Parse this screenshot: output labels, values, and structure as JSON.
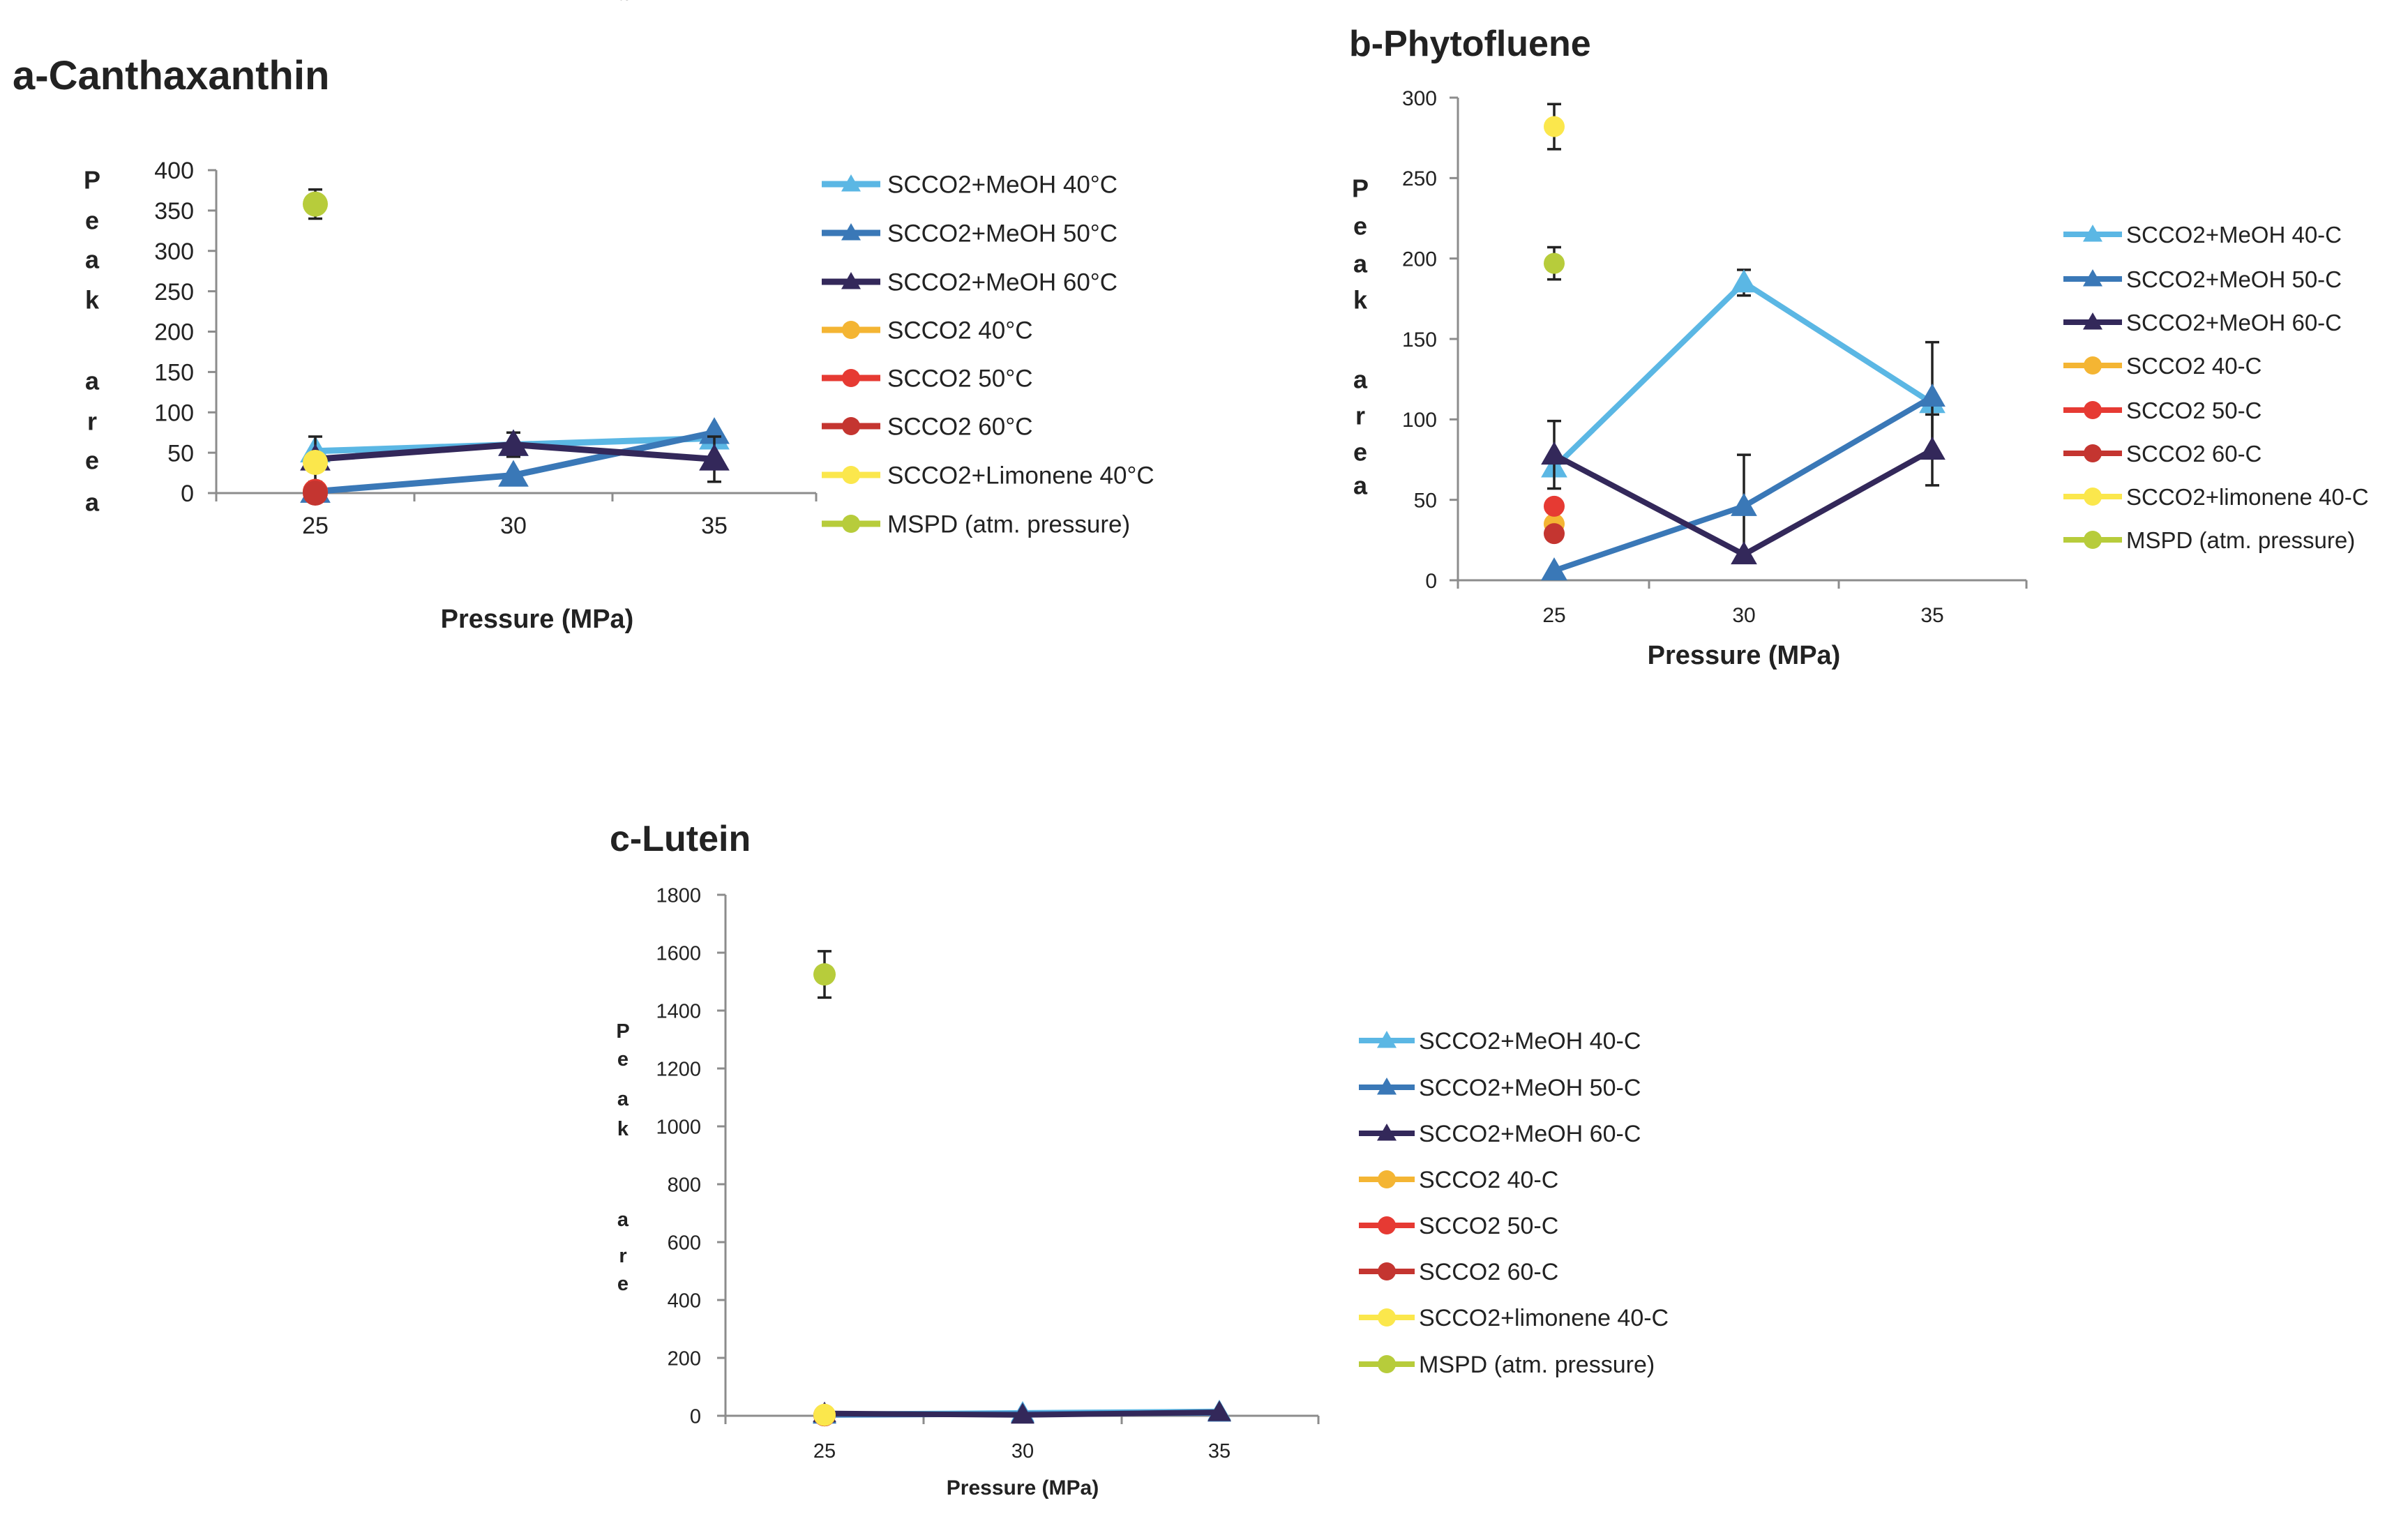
{
  "series_colors": {
    "meoh40": "#5BB7E4",
    "meoh50": "#3A78B7",
    "meoh60": "#33285A",
    "sc40": "#F4B533",
    "sc50": "#E63A33",
    "sc60": "#C43530",
    "limonene": "#FBE74C",
    "mspd": "#B7CC3B"
  },
  "chart_data": [
    {
      "type": "line",
      "title": "a-Canthaxanthin",
      "xlabel": "Pressure (MPa)",
      "ylabel": "Peak area",
      "ylabel_chars": [
        "P",
        "e",
        "a",
        "k",
        "",
        "a",
        "r",
        "e",
        "a"
      ],
      "categories": [
        "25",
        "30",
        "35"
      ],
      "ylim": [
        0,
        400
      ],
      "yticks": [
        "0",
        "50",
        "100",
        "150",
        "200",
        "250",
        "300",
        "350",
        "400"
      ],
      "legend": "right",
      "series": [
        {
          "key": "meoh40",
          "name": "SCCO2+MeOH  40°C",
          "marker": "triangle",
          "values": [
            52,
            60,
            68
          ],
          "errors": [
            0,
            0,
            0
          ]
        },
        {
          "key": "meoh50",
          "name": "SCCO2+MeOH  50°C",
          "marker": "triangle",
          "values": [
            2,
            22,
            75
          ],
          "errors": [
            0,
            0,
            0
          ]
        },
        {
          "key": "meoh60",
          "name": "SCCO2+MeOH  60°C",
          "marker": "triangle",
          "values": [
            42,
            60,
            42
          ],
          "errors": [
            28,
            15,
            28
          ]
        },
        {
          "key": "sc40",
          "name": "SCCO2  40°C",
          "marker": "circle",
          "values": [
            2,
            null,
            null
          ],
          "errors": [
            0,
            0,
            0
          ]
        },
        {
          "key": "sc50",
          "name": "SCCO2  50°C",
          "marker": "circle",
          "values": [
            2,
            null,
            null
          ],
          "errors": [
            0,
            0,
            0
          ]
        },
        {
          "key": "sc60",
          "name": "SCCO2  60°C",
          "marker": "circle",
          "values": [
            0,
            null,
            null
          ],
          "errors": [
            0,
            0,
            0
          ]
        },
        {
          "key": "limonene",
          "name": "SCCO2+Limonene  40°C",
          "marker": "circle",
          "values": [
            38,
            null,
            null
          ],
          "errors": [
            0,
            0,
            0
          ]
        },
        {
          "key": "mspd",
          "name": "MSPD (atm. pressure)",
          "marker": "circle",
          "values": [
            358,
            null,
            null
          ],
          "errors": [
            18,
            0,
            0
          ]
        }
      ]
    },
    {
      "type": "line",
      "title": "b-Phytofluene",
      "xlabel": "Pressure (MPa)",
      "ylabel": "Peak area",
      "ylabel_chars": [
        "P",
        "e",
        "a",
        "k",
        "",
        "a",
        "r",
        "e",
        "a"
      ],
      "categories": [
        "25",
        "30",
        "35"
      ],
      "ylim": [
        0,
        300
      ],
      "yticks": [
        "0",
        "50",
        "100",
        "150",
        "200",
        "250",
        "300"
      ],
      "legend": "right",
      "series": [
        {
          "key": "meoh40",
          "name": "SCCO2+MeOH 40-C",
          "marker": "triangle",
          "values": [
            70,
            185,
            110
          ],
          "errors": [
            0,
            8,
            0
          ]
        },
        {
          "key": "meoh50",
          "name": "SCCO2+MeOH 50-C",
          "marker": "triangle",
          "values": [
            6,
            46,
            114
          ],
          "errors": [
            0,
            32,
            34
          ]
        },
        {
          "key": "meoh60",
          "name": "SCCO2+MeOH 60-C",
          "marker": "triangle",
          "values": [
            78,
            16,
            81
          ],
          "errors": [
            21,
            0,
            22
          ]
        },
        {
          "key": "sc40",
          "name": "SCCO2 40-C",
          "marker": "circle",
          "values": [
            35,
            null,
            null
          ],
          "errors": [
            0,
            0,
            0
          ]
        },
        {
          "key": "sc50",
          "name": "SCCO2 50-C",
          "marker": "circle",
          "values": [
            46,
            null,
            null
          ],
          "errors": [
            0,
            0,
            0
          ]
        },
        {
          "key": "sc60",
          "name": "SCCO2 60-C",
          "marker": "circle",
          "values": [
            29,
            null,
            null
          ],
          "errors": [
            0,
            0,
            0
          ]
        },
        {
          "key": "limonene",
          "name": "SCCO2+limonene 40-C",
          "marker": "circle",
          "values": [
            282,
            null,
            null
          ],
          "errors": [
            14,
            0,
            0
          ]
        },
        {
          "key": "mspd",
          "name": "MSPD (atm. pressure)",
          "marker": "circle",
          "values": [
            197,
            null,
            null
          ],
          "errors": [
            10,
            0,
            0
          ]
        }
      ]
    },
    {
      "type": "line",
      "title": "c-Lutein",
      "xlabel": "Pressure (MPa)",
      "ylabel": "Peak area",
      "ylabel_chars": [
        "P",
        "e",
        "a",
        "k",
        "",
        "a",
        "r",
        "e",
        "a"
      ],
      "categories": [
        "25",
        "30",
        "35"
      ],
      "ylim": [
        0,
        1800
      ],
      "yticks": [
        "0",
        "200",
        "400",
        "600",
        "800",
        "1000",
        "1200",
        "1400",
        "1600",
        "1800"
      ],
      "legend": "right",
      "series": [
        {
          "key": "meoh40",
          "name": "SCCO2+MeOH 40-C",
          "marker": "triangle",
          "values": [
            5,
            10,
            15
          ],
          "errors": [
            0,
            0,
            0
          ]
        },
        {
          "key": "meoh50",
          "name": "SCCO2+MeOH 50-C",
          "marker": "triangle",
          "values": [
            3,
            6,
            10
          ],
          "errors": [
            0,
            0,
            0
          ]
        },
        {
          "key": "meoh60",
          "name": "SCCO2+MeOH 60-C",
          "marker": "triangle",
          "values": [
            8,
            3,
            12
          ],
          "errors": [
            0,
            0,
            0
          ]
        },
        {
          "key": "sc40",
          "name": "SCCO2 40-C",
          "marker": "circle",
          "values": [
            2,
            null,
            null
          ],
          "errors": [
            0,
            0,
            0
          ]
        },
        {
          "key": "sc50",
          "name": "SCCO2 50-C",
          "marker": "circle",
          "values": [
            2,
            null,
            null
          ],
          "errors": [
            0,
            0,
            0
          ]
        },
        {
          "key": "sc60",
          "name": "SCCO2 60-C",
          "marker": "circle",
          "values": [
            2,
            null,
            null
          ],
          "errors": [
            0,
            0,
            0
          ]
        },
        {
          "key": "limonene",
          "name": "SCCO2+limonene 40-C",
          "marker": "circle",
          "values": [
            3,
            null,
            null
          ],
          "errors": [
            0,
            0,
            0
          ]
        },
        {
          "key": "mspd",
          "name": "MSPD (atm. pressure)",
          "marker": "circle",
          "values": [
            1525,
            null,
            null
          ],
          "errors": [
            80,
            0,
            0
          ]
        }
      ]
    }
  ]
}
